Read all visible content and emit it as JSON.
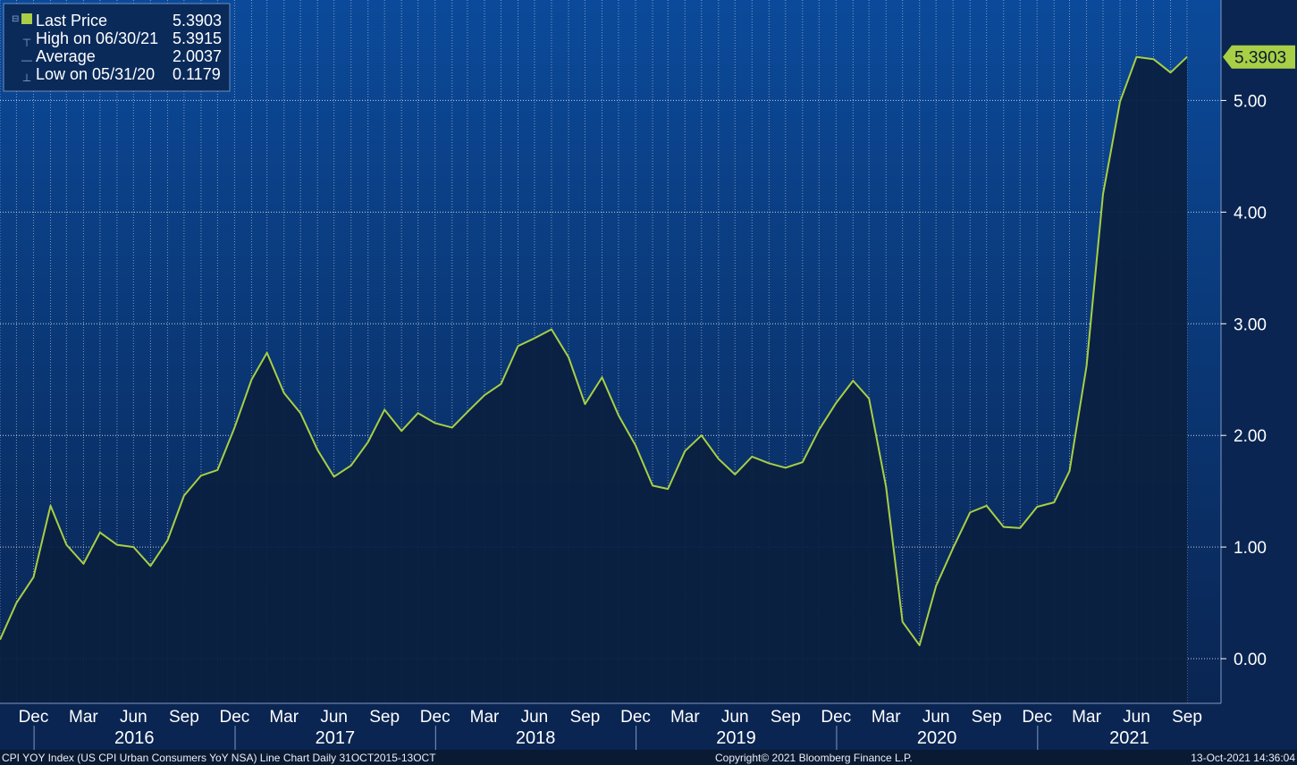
{
  "legend": {
    "rows": [
      {
        "label": "Last Price",
        "value": "5.3903",
        "marker": "square"
      },
      {
        "label": "High on 06/30/21",
        "value": "5.3915",
        "marker": "high"
      },
      {
        "label": "Average",
        "value": "2.0037",
        "marker": "avg"
      },
      {
        "label": "Low on 05/31/20",
        "value": "0.1179",
        "marker": "low"
      }
    ]
  },
  "last_price_tag": "5.3903",
  "footer": {
    "left": "CPI YOY Index (US CPI Urban Consumers YoY NSA) Line Chart  Daily 31OCT2015-13OCT",
    "center": "Copyright© 2021 Bloomberg Finance L.P.",
    "right": "13-Oct-2021 14:36:04"
  },
  "colors": {
    "background_top": "#0b4a9a",
    "background_bottom": "#0a2552",
    "line": "#a8cf45",
    "area_fill": "#0b1f3f",
    "tag_bg": "#a8cf45"
  },
  "chart_data": {
    "type": "area",
    "series": [
      {
        "name": "Last Price",
        "x": [
          "2015-10-31",
          "2015-11-30",
          "2015-12-31",
          "2016-01-31",
          "2016-02-29",
          "2016-03-31",
          "2016-04-30",
          "2016-05-31",
          "2016-06-30",
          "2016-07-31",
          "2016-08-31",
          "2016-09-30",
          "2016-10-31",
          "2016-11-30",
          "2016-12-31",
          "2017-01-31",
          "2017-02-28",
          "2017-03-31",
          "2017-04-30",
          "2017-05-31",
          "2017-06-30",
          "2017-07-31",
          "2017-08-31",
          "2017-09-30",
          "2017-10-31",
          "2017-11-30",
          "2017-12-31",
          "2018-01-31",
          "2018-02-28",
          "2018-03-31",
          "2018-04-30",
          "2018-05-31",
          "2018-06-30",
          "2018-07-31",
          "2018-08-31",
          "2018-09-30",
          "2018-10-31",
          "2018-11-30",
          "2018-12-31",
          "2019-01-31",
          "2019-02-28",
          "2019-03-31",
          "2019-04-30",
          "2019-05-31",
          "2019-06-30",
          "2019-07-31",
          "2019-08-31",
          "2019-09-30",
          "2019-10-31",
          "2019-11-30",
          "2019-12-31",
          "2020-01-31",
          "2020-02-29",
          "2020-03-31",
          "2020-04-30",
          "2020-05-31",
          "2020-06-30",
          "2020-07-31",
          "2020-08-31",
          "2020-09-30",
          "2020-10-31",
          "2020-11-30",
          "2020-12-31",
          "2021-01-31",
          "2021-02-28",
          "2021-03-31",
          "2021-04-30",
          "2021-05-31",
          "2021-06-30",
          "2021-07-31",
          "2021-08-31",
          "2021-09-30"
        ],
        "values": [
          0.17,
          0.5,
          0.73,
          1.37,
          1.02,
          0.85,
          1.13,
          1.02,
          1.0,
          0.83,
          1.06,
          1.46,
          1.64,
          1.69,
          2.07,
          2.5,
          2.74,
          2.38,
          2.2,
          1.87,
          1.63,
          1.73,
          1.94,
          2.23,
          2.04,
          2.2,
          2.11,
          2.07,
          2.21,
          2.36,
          2.46,
          2.8,
          2.87,
          2.95,
          2.7,
          2.28,
          2.52,
          2.18,
          1.91,
          1.55,
          1.52,
          1.86,
          2.0,
          1.79,
          1.65,
          1.81,
          1.75,
          1.71,
          1.76,
          2.05,
          2.29,
          2.49,
          2.33,
          1.54,
          0.33,
          0.12,
          0.65,
          0.99,
          1.31,
          1.37,
          1.18,
          1.17,
          1.36,
          1.4,
          1.68,
          2.62,
          4.16,
          4.99,
          5.39,
          5.37,
          5.25,
          5.39
        ]
      }
    ],
    "x_tick_labels": [
      "Dec",
      "Mar",
      "Jun",
      "Sep",
      "Dec",
      "Mar",
      "Jun",
      "Sep",
      "Dec",
      "Mar",
      "Jun",
      "Sep",
      "Dec",
      "Mar",
      "Jun",
      "Sep",
      "Dec",
      "Mar",
      "Jun",
      "Sep",
      "Dec",
      "Mar",
      "Jun",
      "Sep"
    ],
    "x_tick_dates": [
      "2015-12-31",
      "2016-03-31",
      "2016-06-30",
      "2016-09-30",
      "2016-12-31",
      "2017-03-31",
      "2017-06-30",
      "2017-09-30",
      "2017-12-31",
      "2018-03-31",
      "2018-06-30",
      "2018-09-30",
      "2018-12-31",
      "2019-03-31",
      "2019-06-30",
      "2019-09-30",
      "2019-12-31",
      "2020-03-31",
      "2020-06-30",
      "2020-09-30",
      "2020-12-31",
      "2021-03-31",
      "2021-06-30",
      "2021-09-30"
    ],
    "year_labels": [
      "2016",
      "2017",
      "2018",
      "2019",
      "2020",
      "2021"
    ],
    "y_ticks": [
      0.0,
      1.0,
      2.0,
      3.0,
      4.0,
      5.0
    ],
    "y_tick_labels": [
      "0.00",
      "1.00",
      "2.00",
      "3.00",
      "4.00",
      "5.00"
    ],
    "ylim": [
      -0.4,
      5.9
    ],
    "grid": true,
    "legend_position": "top-left",
    "title": "",
    "xlabel": "",
    "ylabel": ""
  }
}
